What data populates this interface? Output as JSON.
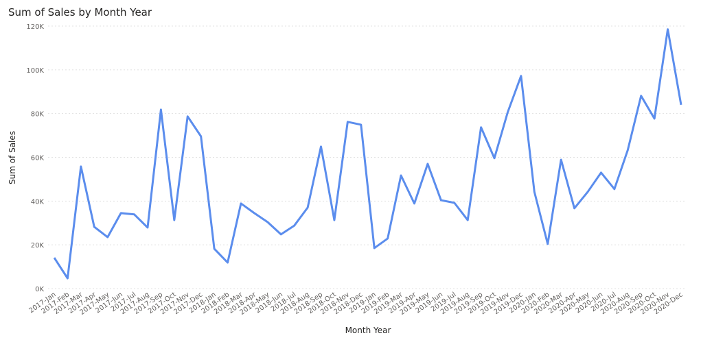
{
  "chart_data": {
    "type": "line",
    "title": "Sum of Sales by Month Year",
    "x_label": "Month Year",
    "y_label": "Sum of Sales",
    "categories": [
      "2017-Jan",
      "2017-Feb",
      "2017-Mar",
      "2017-Apr",
      "2017-May",
      "2017-Jun",
      "2017-Jul",
      "2017-Aug",
      "2017-Sep",
      "2017-Oct",
      "2017-Nov",
      "2017-Dec",
      "2018-Jan",
      "2018-Feb",
      "2018-Mar",
      "2018-Apr",
      "2018-May",
      "2018-Jun",
      "2018-Jul",
      "2018-Aug",
      "2018-Sep",
      "2018-Oct",
      "2018-Nov",
      "2018-Dec",
      "2019-Jan",
      "2019-Feb",
      "2019-Mar",
      "2019-Apr",
      "2019-May",
      "2019-Jun",
      "2019-Jul",
      "2019-Aug",
      "2019-Sep",
      "2019-Oct",
      "2019-Nov",
      "2019-Dec",
      "2020-Jan",
      "2020-Feb",
      "2020-Mar",
      "2020-Apr",
      "2020-May",
      "2020-Jun",
      "2020-Jul",
      "2020-Aug",
      "2020-Sep",
      "2020-Oct",
      "2020-Nov",
      "2020-Dec"
    ],
    "series": [
      {
        "name": "Sum of Sales",
        "color": "#5b8ded",
        "values": [
          14100,
          4700,
          55800,
          28200,
          23500,
          34500,
          33900,
          27900,
          81800,
          31300,
          78700,
          69600,
          18200,
          11900,
          38900,
          34500,
          30400,
          24800,
          28800,
          37000,
          64900,
          31300,
          76200,
          74900,
          18500,
          22900,
          51700,
          38900,
          57000,
          40400,
          39200,
          31300,
          73700,
          59600,
          80600,
          97200,
          44200,
          20400,
          58900,
          36700,
          44200,
          53000,
          45500,
          63300,
          88100,
          77700,
          118500,
          84000
        ]
      }
    ],
    "ylim": [
      0,
      120000
    ],
    "yticks": [
      {
        "value": 0,
        "label": "0K"
      },
      {
        "value": 20000,
        "label": "20K"
      },
      {
        "value": 40000,
        "label": "40K"
      },
      {
        "value": 60000,
        "label": "60K"
      },
      {
        "value": 80000,
        "label": "80K"
      },
      {
        "value": 100000,
        "label": "100K"
      },
      {
        "value": 120000,
        "label": "120K"
      }
    ],
    "grid": true
  }
}
